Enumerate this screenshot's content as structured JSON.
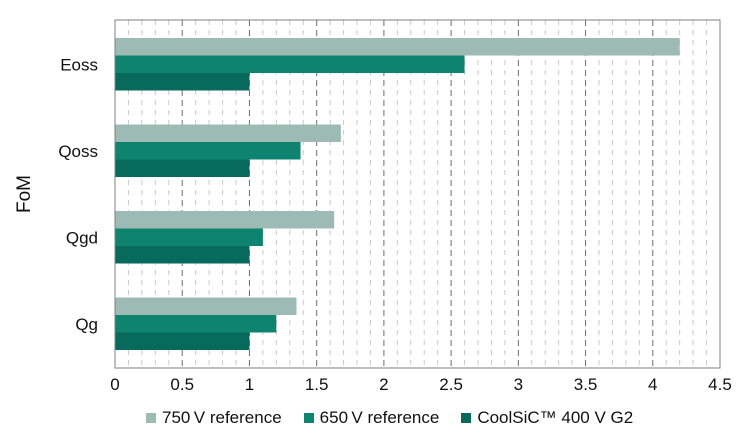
{
  "chart_data": {
    "type": "bar",
    "orientation": "horizontal",
    "ylabel": "FoM",
    "xlabel": "",
    "xlim": [
      0,
      4.5
    ],
    "major_ticks": [
      0,
      0.5,
      1,
      1.5,
      2,
      2.5,
      3,
      3.5,
      4,
      4.5
    ],
    "tick_labels": [
      "0",
      "0.5",
      "1",
      "1.5",
      "2",
      "2.5",
      "3",
      "3.5",
      "4",
      "4.5"
    ],
    "minor_step": 0.1,
    "grid": "vertical dashed",
    "categories": [
      "Eoss",
      "Qoss",
      "Qgd",
      "Qg"
    ],
    "series": [
      {
        "name": "750 V reference",
        "color": "#9dbab5",
        "values": [
          4.2,
          1.68,
          1.63,
          1.35
        ]
      },
      {
        "name": "650 V reference",
        "color": "#0e8470",
        "values": [
          2.6,
          1.38,
          1.1,
          1.2
        ]
      },
      {
        "name": "CoolSiC™ 400 V G2",
        "color": "#086a5c",
        "values": [
          1.0,
          1.0,
          1.0,
          1.0
        ]
      }
    ],
    "legend_position": "bottom"
  }
}
